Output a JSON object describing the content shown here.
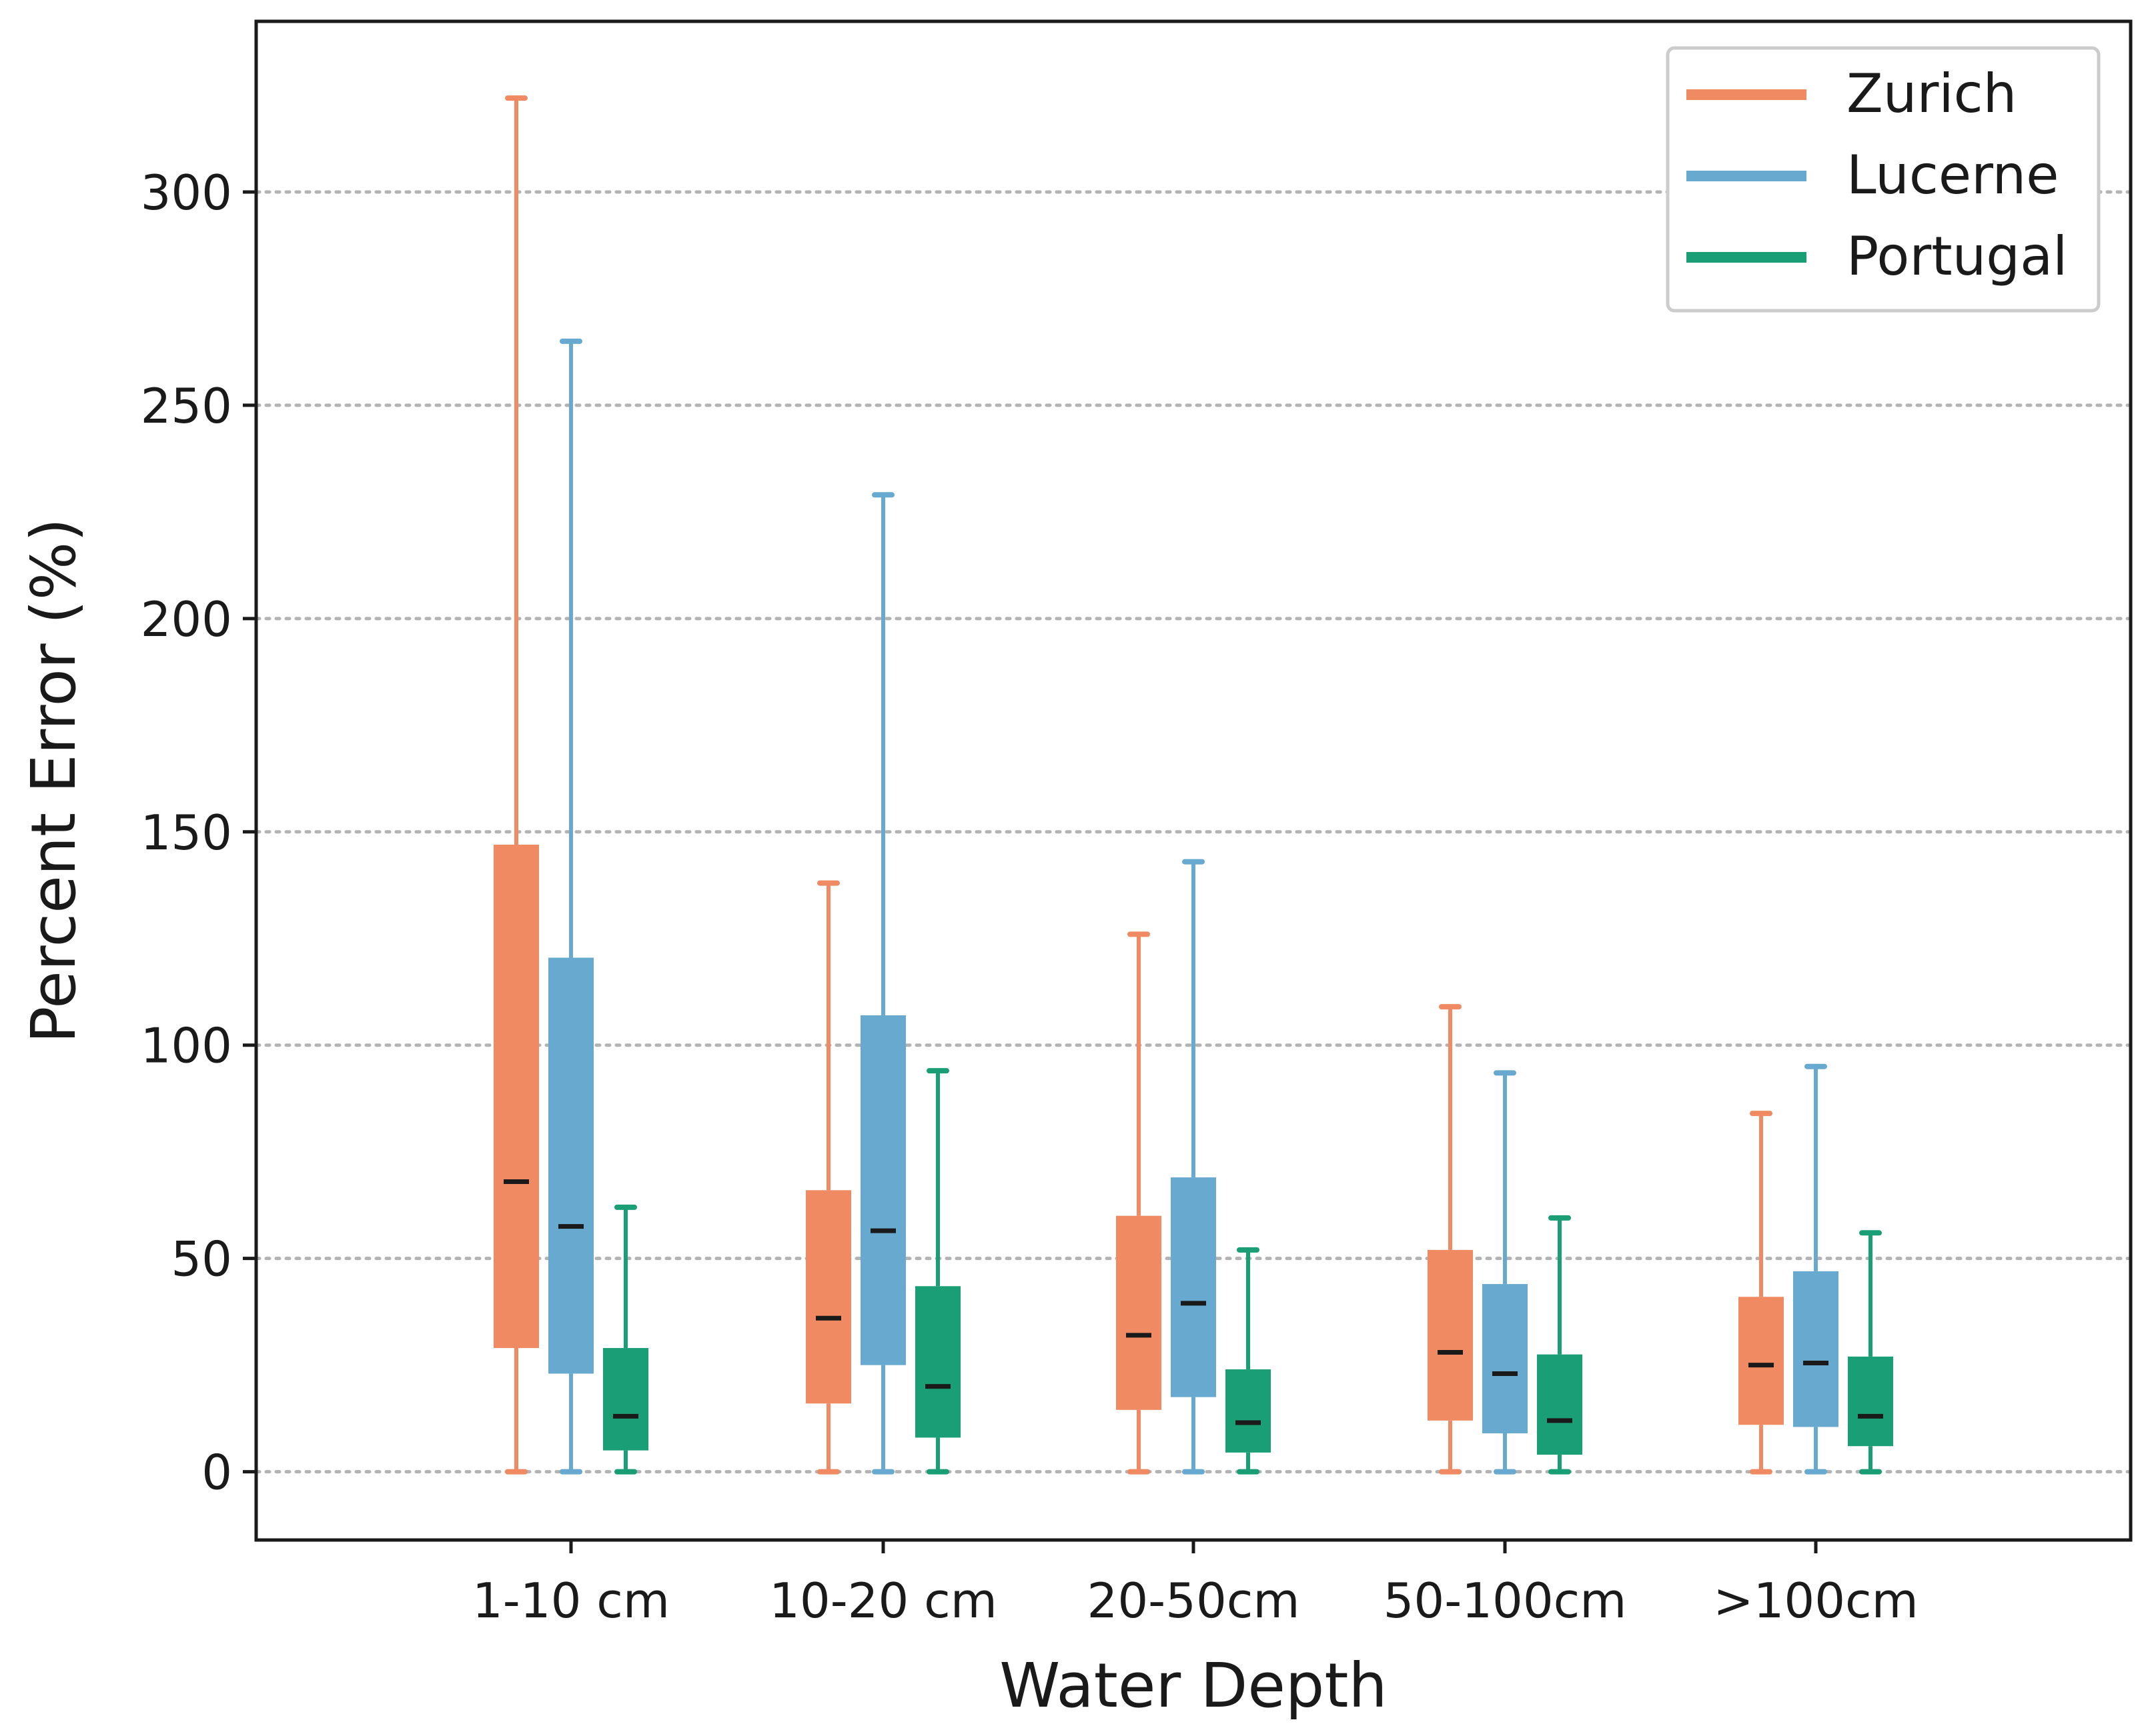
{
  "chart_data": {
    "type": "boxplot",
    "title": "",
    "xlabel": "Water Depth",
    "ylabel": "Percent Error (%)",
    "ylim": [
      -16,
      340
    ],
    "yticks": [
      0,
      50,
      100,
      150,
      200,
      250,
      300
    ],
    "grid": "horizontal dotted",
    "legend_position": "top-right",
    "categories": [
      "1-10 cm",
      "10-20 cm",
      "20-50cm",
      "50-100cm",
      ">100cm"
    ],
    "series": [
      {
        "name": "Zurich",
        "color": "#ef8a62",
        "boxes": [
          {
            "whislo": 0,
            "q1": 29,
            "med": 68,
            "q3": 147,
            "whishi": 322
          },
          {
            "whislo": 0,
            "q1": 16,
            "med": 36,
            "q3": 66,
            "whishi": 138
          },
          {
            "whislo": 0,
            "q1": 14.5,
            "med": 32,
            "q3": 60,
            "whishi": 126
          },
          {
            "whislo": 0,
            "q1": 12,
            "med": 28,
            "q3": 52,
            "whishi": 109
          },
          {
            "whislo": 0,
            "q1": 11,
            "med": 25,
            "q3": 41,
            "whishi": 84
          }
        ]
      },
      {
        "name": "Lucerne",
        "color": "#67a9cf",
        "boxes": [
          {
            "whislo": 0,
            "q1": 23,
            "med": 57.5,
            "q3": 120.5,
            "whishi": 265
          },
          {
            "whislo": 0,
            "q1": 25,
            "med": 56.5,
            "q3": 107,
            "whishi": 229
          },
          {
            "whislo": 0,
            "q1": 17.5,
            "med": 39.5,
            "q3": 69,
            "whishi": 143
          },
          {
            "whislo": 0,
            "q1": 9,
            "med": 23,
            "q3": 44,
            "whishi": 93.5
          },
          {
            "whislo": 0,
            "q1": 10.5,
            "med": 25.5,
            "q3": 47,
            "whishi": 95
          }
        ]
      },
      {
        "name": "Portugal",
        "color": "#1a9e76",
        "boxes": [
          {
            "whislo": 0,
            "q1": 5,
            "med": 13,
            "q3": 29,
            "whishi": 62
          },
          {
            "whislo": 0,
            "q1": 8,
            "med": 20,
            "q3": 43.5,
            "whishi": 94
          },
          {
            "whislo": 0,
            "q1": 4.5,
            "med": 11.5,
            "q3": 24,
            "whishi": 52
          },
          {
            "whislo": 0,
            "q1": 4,
            "med": 12,
            "q3": 27.5,
            "whishi": 59.5
          },
          {
            "whislo": 0,
            "q1": 6,
            "med": 13,
            "q3": 27,
            "whishi": 56
          }
        ]
      }
    ]
  }
}
